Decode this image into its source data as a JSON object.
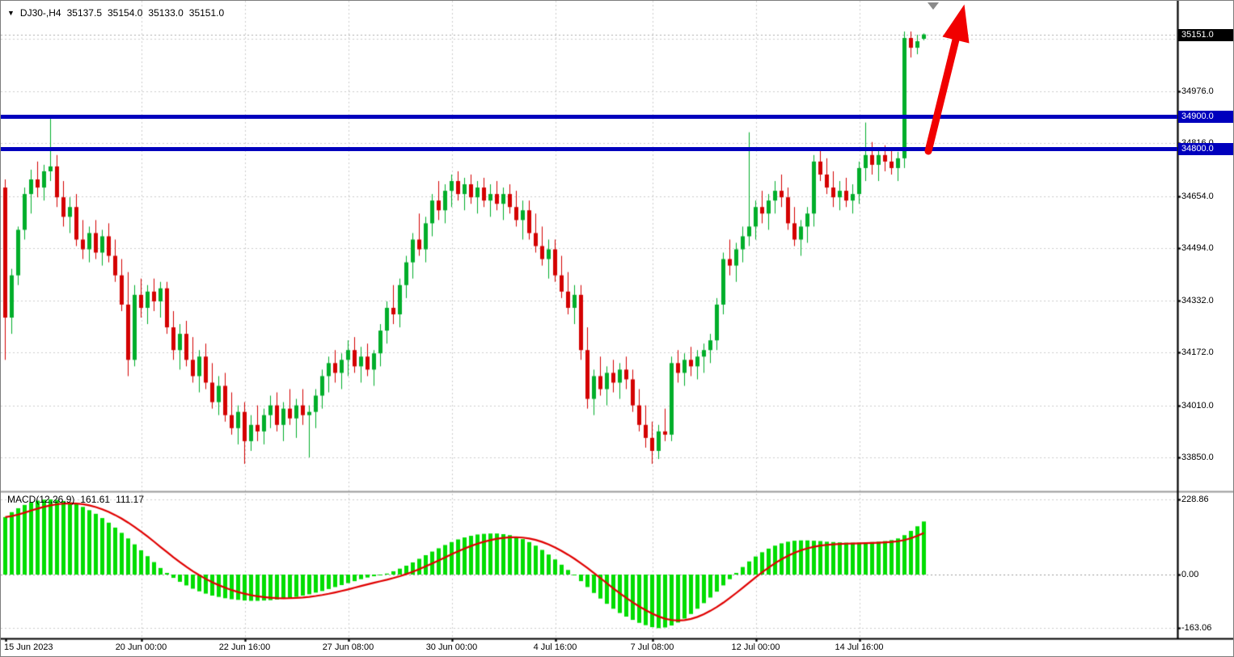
{
  "header": {
    "marker_icon": "▼",
    "symbol": "DJ30-,H4",
    "open": "35137.5",
    "high": "35154.0",
    "low": "35133.0",
    "close": "35151.0"
  },
  "macd_header": {
    "label": "MACD(12,26,9)",
    "macd_value": "161.61",
    "signal_value": "111.17"
  },
  "colors": {
    "bull": "#00ae2a",
    "bear": "#d40000",
    "grid": "#cdcdcd",
    "level_line": "#0000bd",
    "level_label_bg": "#0000bd",
    "current_price_bg": "#000000",
    "hist": "#00dd00",
    "signal": "#e00000",
    "arrow": "#f10000",
    "axis_text": "#000000"
  },
  "chart_data": {
    "type": "candlestick+macd",
    "title": "DJ30- H4 candlestick chart with MACD(12,26,9)",
    "price_axis": {
      "gridlines": [
        35138.0,
        34976.0,
        34816.0,
        34654.0,
        34494.0,
        34332.0,
        34172.0,
        34010.0,
        33850.0
      ],
      "current_price": 35151.0,
      "levels": [
        34900.0,
        34800.0
      ]
    },
    "macd_axis": {
      "max": 228.86,
      "zero": 0.0,
      "min": -163.06
    },
    "time_ticks": [
      {
        "index": 0,
        "label": "15 Jun 2023"
      },
      {
        "index": 21,
        "label": "20 Jun 00:00"
      },
      {
        "index": 37,
        "label": "22 Jun 16:00"
      },
      {
        "index": 53,
        "label": "27 Jun 08:00"
      },
      {
        "index": 69,
        "label": "30 Jun 00:00"
      },
      {
        "index": 85,
        "label": "4 Jul 16:00"
      },
      {
        "index": 100,
        "label": "7 Jul 08:00"
      },
      {
        "index": 116,
        "label": "12 Jul 00:00"
      },
      {
        "index": 132,
        "label": "14 Jul 16:00"
      }
    ],
    "candles": [
      [
        34680,
        34705,
        34150,
        34280
      ],
      [
        34280,
        34430,
        34230,
        34410
      ],
      [
        34410,
        34560,
        34380,
        34550
      ],
      [
        34550,
        34680,
        34520,
        34660
      ],
      [
        34660,
        34735,
        34600,
        34705
      ],
      [
        34705,
        34760,
        34650,
        34680
      ],
      [
        34680,
        34750,
        34640,
        34730
      ],
      [
        34730,
        34900,
        34700,
        34745
      ],
      [
        34745,
        34780,
        34620,
        34650
      ],
      [
        34650,
        34700,
        34560,
        34590
      ],
      [
        34590,
        34650,
        34540,
        34620
      ],
      [
        34620,
        34660,
        34500,
        34520
      ],
      [
        34520,
        34580,
        34460,
        34490
      ],
      [
        34490,
        34560,
        34450,
        34540
      ],
      [
        34540,
        34580,
        34460,
        34480
      ],
      [
        34480,
        34550,
        34440,
        34530
      ],
      [
        34530,
        34570,
        34450,
        34470
      ],
      [
        34470,
        34520,
        34390,
        34410
      ],
      [
        34410,
        34460,
        34300,
        34320
      ],
      [
        34320,
        34420,
        34100,
        34150
      ],
      [
        34150,
        34380,
        34130,
        34350
      ],
      [
        34350,
        34400,
        34280,
        34310
      ],
      [
        34310,
        34380,
        34260,
        34360
      ],
      [
        34360,
        34400,
        34300,
        34330
      ],
      [
        34330,
        34390,
        34280,
        34370
      ],
      [
        34370,
        34390,
        34230,
        34250
      ],
      [
        34250,
        34300,
        34150,
        34180
      ],
      [
        34180,
        34260,
        34120,
        34230
      ],
      [
        34230,
        34270,
        34130,
        34150
      ],
      [
        34150,
        34220,
        34080,
        34100
      ],
      [
        34100,
        34180,
        34050,
        34160
      ],
      [
        34160,
        34200,
        34060,
        34080
      ],
      [
        34080,
        34140,
        34000,
        34020
      ],
      [
        34020,
        34100,
        33980,
        34070
      ],
      [
        34070,
        34110,
        33960,
        33980
      ],
      [
        33980,
        34050,
        33920,
        33940
      ],
      [
        33940,
        34010,
        33890,
        33990
      ],
      [
        33990,
        34020,
        33830,
        33900
      ],
      [
        33900,
        33980,
        33870,
        33950
      ],
      [
        33950,
        34010,
        33900,
        33930
      ],
      [
        33930,
        34000,
        33890,
        33980
      ],
      [
        33980,
        34040,
        33940,
        34010
      ],
      [
        34010,
        34050,
        33930,
        33950
      ],
      [
        33950,
        34020,
        33900,
        34000
      ],
      [
        34000,
        34060,
        33950,
        33970
      ],
      [
        33970,
        34030,
        33910,
        34010
      ],
      [
        34010,
        34060,
        33950,
        33980
      ],
      [
        33980,
        34010,
        33850,
        33990
      ],
      [
        33990,
        34060,
        33940,
        34040
      ],
      [
        34040,
        34120,
        34000,
        34100
      ],
      [
        34100,
        34160,
        34050,
        34140
      ],
      [
        34140,
        34180,
        34080,
        34110
      ],
      [
        34110,
        34170,
        34060,
        34150
      ],
      [
        34150,
        34210,
        34100,
        34180
      ],
      [
        34180,
        34220,
        34110,
        34130
      ],
      [
        34130,
        34190,
        34080,
        34160
      ],
      [
        34160,
        34200,
        34100,
        34120
      ],
      [
        34120,
        34180,
        34070,
        34170
      ],
      [
        34170,
        34260,
        34130,
        34240
      ],
      [
        34240,
        34330,
        34200,
        34310
      ],
      [
        34310,
        34380,
        34260,
        34290
      ],
      [
        34290,
        34400,
        34250,
        34380
      ],
      [
        34380,
        34470,
        34340,
        34450
      ],
      [
        34450,
        34540,
        34400,
        34520
      ],
      [
        34520,
        34600,
        34470,
        34490
      ],
      [
        34490,
        34590,
        34450,
        34570
      ],
      [
        34570,
        34660,
        34530,
        34640
      ],
      [
        34640,
        34700,
        34580,
        34610
      ],
      [
        34610,
        34690,
        34570,
        34670
      ],
      [
        34670,
        34720,
        34620,
        34700
      ],
      [
        34700,
        34730,
        34640,
        34660
      ],
      [
        34660,
        34710,
        34610,
        34690
      ],
      [
        34690,
        34720,
        34630,
        34650
      ],
      [
        34650,
        34700,
        34600,
        34680
      ],
      [
        34680,
        34710,
        34620,
        34640
      ],
      [
        34640,
        34690,
        34590,
        34660
      ],
      [
        34660,
        34700,
        34610,
        34630
      ],
      [
        34630,
        34680,
        34580,
        34660
      ],
      [
        34660,
        34690,
        34600,
        34620
      ],
      [
        34620,
        34670,
        34560,
        34580
      ],
      [
        34580,
        34640,
        34520,
        34610
      ],
      [
        34610,
        34640,
        34520,
        34540
      ],
      [
        34540,
        34600,
        34480,
        34500
      ],
      [
        34500,
        34560,
        34440,
        34460
      ],
      [
        34460,
        34520,
        34400,
        34490
      ],
      [
        34490,
        34520,
        34390,
        34410
      ],
      [
        34410,
        34470,
        34340,
        34360
      ],
      [
        34360,
        34420,
        34290,
        34310
      ],
      [
        34310,
        34380,
        34260,
        34350
      ],
      [
        34350,
        34380,
        34150,
        34180
      ],
      [
        34180,
        34250,
        34000,
        34030
      ],
      [
        34030,
        34120,
        33980,
        34100
      ],
      [
        34100,
        34160,
        34040,
        34060
      ],
      [
        34060,
        34130,
        34010,
        34110
      ],
      [
        34110,
        34150,
        34050,
        34080
      ],
      [
        34080,
        34140,
        34030,
        34120
      ],
      [
        34120,
        34160,
        34060,
        34090
      ],
      [
        34090,
        34120,
        33990,
        34010
      ],
      [
        34010,
        34060,
        33930,
        33950
      ],
      [
        33950,
        34010,
        33880,
        33910
      ],
      [
        33910,
        33960,
        33830,
        33870
      ],
      [
        33870,
        33950,
        33845,
        33930
      ],
      [
        33930,
        34000,
        33900,
        33920
      ],
      [
        33920,
        34160,
        33900,
        34140
      ],
      [
        34140,
        34180,
        34080,
        34110
      ],
      [
        34110,
        34170,
        34070,
        34150
      ],
      [
        34150,
        34190,
        34100,
        34130
      ],
      [
        34130,
        34180,
        34090,
        34160
      ],
      [
        34160,
        34200,
        34110,
        34180
      ],
      [
        34180,
        34230,
        34140,
        34210
      ],
      [
        34210,
        34340,
        34180,
        34320
      ],
      [
        34320,
        34480,
        34290,
        34460
      ],
      [
        34460,
        34520,
        34410,
        34440
      ],
      [
        34440,
        34510,
        34390,
        34490
      ],
      [
        34490,
        34560,
        34450,
        34530
      ],
      [
        34530,
        34850,
        34500,
        34560
      ],
      [
        34560,
        34640,
        34520,
        34620
      ],
      [
        34620,
        34670,
        34570,
        34600
      ],
      [
        34600,
        34660,
        34550,
        34640
      ],
      [
        34640,
        34700,
        34600,
        34670
      ],
      [
        34670,
        34720,
        34620,
        34650
      ],
      [
        34650,
        34680,
        34550,
        34570
      ],
      [
        34570,
        34620,
        34500,
        34520
      ],
      [
        34520,
        34580,
        34470,
        34560
      ],
      [
        34560,
        34620,
        34510,
        34600
      ],
      [
        34600,
        34780,
        34560,
        34760
      ],
      [
        34760,
        34800,
        34700,
        34720
      ],
      [
        34720,
        34770,
        34660,
        34680
      ],
      [
        34680,
        34730,
        34620,
        34650
      ],
      [
        34650,
        34700,
        34610,
        34670
      ],
      [
        34670,
        34710,
        34620,
        34640
      ],
      [
        34640,
        34690,
        34600,
        34660
      ],
      [
        34660,
        34760,
        34630,
        34740
      ],
      [
        34740,
        34880,
        34700,
        34780
      ],
      [
        34780,
        34820,
        34720,
        34750
      ],
      [
        34750,
        34800,
        34700,
        34780
      ],
      [
        34780,
        34810,
        34730,
        34760
      ],
      [
        34760,
        34800,
        34720,
        34740
      ],
      [
        34740,
        34790,
        34700,
        34770
      ],
      [
        34770,
        35160,
        34740,
        35140
      ],
      [
        35140,
        35160,
        35080,
        35110
      ],
      [
        35110,
        35150,
        35090,
        35130
      ],
      [
        35137.5,
        35154,
        35133,
        35151
      ]
    ],
    "macd_histogram": [
      175,
      190,
      202,
      212,
      220,
      225,
      228,
      228.86,
      227,
      224,
      220,
      214,
      206,
      196,
      185,
      172,
      158,
      143,
      127,
      110,
      92,
      74,
      56,
      38,
      20,
      5,
      -10,
      -22,
      -33,
      -43,
      -51,
      -58,
      -64,
      -68,
      -72,
      -75,
      -77,
      -79,
      -80,
      -80,
      -79,
      -78,
      -76,
      -74,
      -71,
      -68,
      -64,
      -60,
      -55,
      -50,
      -44,
      -38,
      -32,
      -26,
      -20,
      -14,
      -9,
      -5,
      -2,
      3,
      10,
      18,
      27,
      37,
      48,
      59,
      70,
      80,
      90,
      99,
      107,
      113,
      118,
      122,
      124,
      125,
      125,
      123,
      120,
      115,
      108,
      99,
      88,
      75,
      61,
      46,
      30,
      14,
      -2,
      -20,
      -38,
      -56,
      -73,
      -89,
      -104,
      -117,
      -128,
      -138,
      -147,
      -154,
      -160,
      -163.06,
      -161,
      -155,
      -146,
      -134,
      -120,
      -104,
      -87,
      -70,
      -52,
      -33,
      -14,
      5,
      23,
      40,
      55,
      68,
      79,
      88,
      95,
      100,
      103,
      104,
      104,
      103,
      102,
      100,
      99,
      98,
      97,
      97,
      97,
      98,
      99,
      100,
      102,
      105,
      110,
      120,
      133,
      147,
      161.61
    ]
  }
}
